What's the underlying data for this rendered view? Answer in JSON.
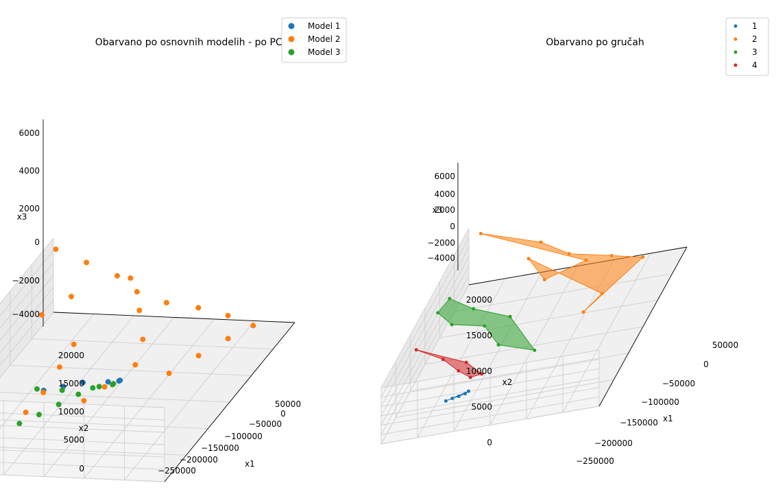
{
  "chart_data": [
    {
      "type": "scatter",
      "projection": "3d",
      "title": "Obarvano po osnovnih modelih - po PCA",
      "xlabel": "x1",
      "ylabel": "x2",
      "zlabel": "x3",
      "x_ticks": [
        "50000",
        "0",
        "−50000",
        "−100000",
        "−150000",
        "−200000",
        "−250000"
      ],
      "y_ticks": [
        "20000",
        "15000",
        "10000",
        "5000",
        "0"
      ],
      "z_ticks": [
        "6000",
        "4000",
        "2000",
        "0",
        "−2000",
        "−4000"
      ],
      "legend": {
        "position": "upper-right",
        "entries": [
          "Model 1",
          "Model 2",
          "Model 3"
        ]
      },
      "colors": {
        "Model 1": "#1f77b4",
        "Model 2": "#ff7f0e",
        "Model 3": "#2ca02c"
      },
      "series": [
        {
          "name": "Model 1",
          "points": [
            [
              0,
              13000,
              4500
            ],
            [
              -20000,
              12000,
              3500
            ],
            [
              -40000,
              11000,
              2500
            ],
            [
              -60000,
              9500,
              1000
            ],
            [
              -75000,
              9000,
              0
            ],
            [
              -85000,
              9500,
              -1000
            ]
          ]
        },
        {
          "name": "Model 2",
          "points": [
            [
              -230000,
              21000,
              7000
            ],
            [
              -225000,
              18000,
              5500
            ],
            [
              -220000,
              15000,
              4000
            ],
            [
              -215000,
              13000,
              2000
            ],
            [
              -220000,
              10500,
              0
            ],
            [
              -230000,
              8000,
              -1500
            ],
            [
              -235000,
              5500,
              -3000
            ],
            [
              -230000,
              3000,
              -4000
            ],
            [
              -210000,
              4500,
              -4500
            ],
            [
              -180000,
              6000,
              -4800
            ],
            [
              -150000,
              7500,
              -5200
            ],
            [
              -200000,
              13000,
              5500
            ],
            [
              -170000,
              11000,
              3000
            ],
            [
              -140000,
              9500,
              1000
            ],
            [
              -110000,
              9000,
              -500
            ],
            [
              -90000,
              11000,
              -2500
            ],
            [
              -80000,
              12500,
              -4000
            ],
            [
              -120000,
              15000,
              1500
            ],
            [
              -100000,
              15500,
              -500
            ],
            [
              -75000,
              16000,
              -2500
            ],
            [
              -60000,
              17000,
              -4500
            ],
            [
              -190000,
              18000,
              3000
            ],
            [
              -160000,
              19500,
              2500
            ]
          ]
        },
        {
          "name": "Model 3",
          "points": [
            [
              -10000,
              14000,
              3800
            ],
            [
              -30000,
              12500,
              2000
            ],
            [
              -50000,
              10500,
              800
            ],
            [
              -70000,
              9500,
              -300
            ],
            [
              -85000,
              10000,
              -1500
            ],
            [
              -90000,
              11500,
              -2500
            ],
            [
              -80000,
              13000,
              -3000
            ],
            [
              -60000,
              14000,
              -3000
            ],
            [
              -40000,
              15000,
              -3000
            ],
            [
              -20000,
              16000,
              -2800
            ]
          ]
        }
      ]
    },
    {
      "type": "scatter",
      "projection": "3d",
      "title": "Obarvano po gručah",
      "xlabel": "x1",
      "ylabel": "x2",
      "zlabel": "x3",
      "x_ticks": [
        "50000",
        "0",
        "−50000",
        "−100000",
        "−150000",
        "−200000",
        "−250000"
      ],
      "y_ticks": [
        "20000",
        "15000",
        "10000",
        "5000",
        "0"
      ],
      "z_ticks": [
        "6000",
        "4000",
        "2000",
        "0",
        "−2000",
        "−4000"
      ],
      "legend": {
        "position": "upper-right",
        "entries": [
          "1",
          "2",
          "3",
          "4"
        ]
      },
      "colors": {
        "1": "#1f77b4",
        "2": "#ff7f0e",
        "3": "#2ca02c",
        "4": "#d62728"
      },
      "series": [
        {
          "name": "1",
          "points": [
            [
              10000,
              16000,
              -2000
            ],
            [
              5000,
              15500,
              -2300
            ],
            [
              0,
              15000,
              -2500
            ],
            [
              -5000,
              14800,
              -2600
            ],
            [
              15000,
              16500,
              -1800
            ]
          ]
        },
        {
          "name": "2",
          "points": [
            [
              -240000,
              20500,
              6500
            ],
            [
              -225000,
              14000,
              4000
            ],
            [
              -220000,
              11000,
              1000
            ],
            [
              -230000,
              7000,
              -2000
            ],
            [
              -235000,
              4000,
              -4000
            ],
            [
              -150000,
              7500,
              -4800
            ],
            [
              -180000,
              6500,
              -4600
            ],
            [
              -200000,
              14500,
              3500
            ],
            [
              -170000,
              12000,
              1500
            ],
            [
              -210000,
              9000,
              0
            ]
          ]
        },
        {
          "name": "3",
          "points": [
            [
              -150000,
              21000,
              3000
            ],
            [
              -110000,
              21000,
              4500
            ],
            [
              -90000,
              19000,
              3500
            ],
            [
              -100000,
              16000,
              1000
            ],
            [
              -80000,
              14000,
              -1500
            ],
            [
              -85000,
              10500,
              -4500
            ],
            [
              -120000,
              14000,
              0
            ],
            [
              -130000,
              18000,
              2000
            ]
          ]
        },
        {
          "name": "4",
          "points": [
            [
              -70000,
              22000,
              1500
            ],
            [
              -60000,
              19000,
              -500
            ],
            [
              -45000,
              17000,
              -2000
            ],
            [
              -35000,
              15500,
              -2800
            ],
            [
              -40000,
              14500,
              -3000
            ],
            [
              -55000,
              16500,
              -1500
            ]
          ]
        }
      ]
    }
  ]
}
